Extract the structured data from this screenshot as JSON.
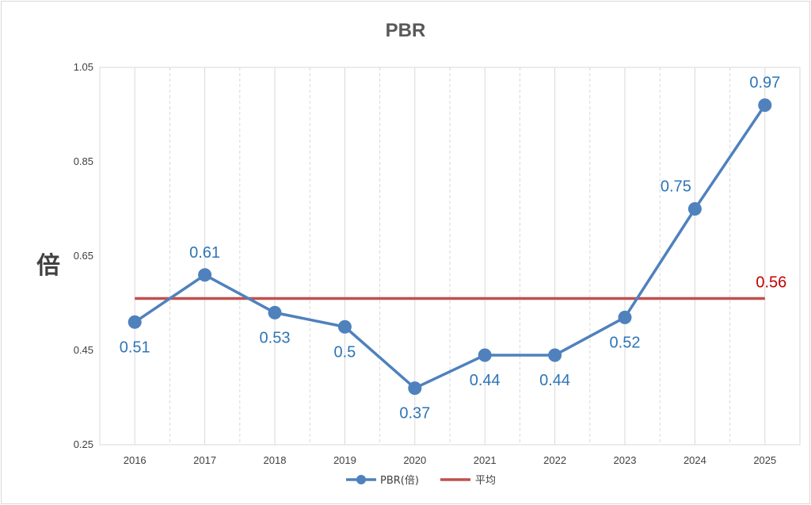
{
  "chart_data": {
    "type": "line",
    "title": "PBR",
    "ylabel": "倍",
    "xlabel": "",
    "categories": [
      "2016",
      "2017",
      "2018",
      "2019",
      "2020",
      "2021",
      "2022",
      "2023",
      "2024",
      "2025"
    ],
    "ylim": [
      0.25,
      1.05
    ],
    "yticks": [
      "0.25",
      "0.45",
      "0.65",
      "0.85",
      "1.05"
    ],
    "series": [
      {
        "name": "PBR(倍)",
        "color": "#4f81bd",
        "values": [
          0.51,
          0.61,
          0.53,
          0.5,
          0.37,
          0.44,
          0.44,
          0.52,
          0.75,
          0.97
        ],
        "labels": [
          "0.51",
          "0.61",
          "0.53",
          "0.5",
          "0.37",
          "0.44",
          "0.44",
          "0.52",
          "0.75",
          "0.97"
        ]
      },
      {
        "name": "平均",
        "color": "#c0504d",
        "value": 0.56,
        "label": "0.56"
      }
    ],
    "grid": {
      "vertical_solid": true,
      "vertical_dashed_between": true,
      "horizontal": false
    },
    "legend": "bottom-center"
  }
}
